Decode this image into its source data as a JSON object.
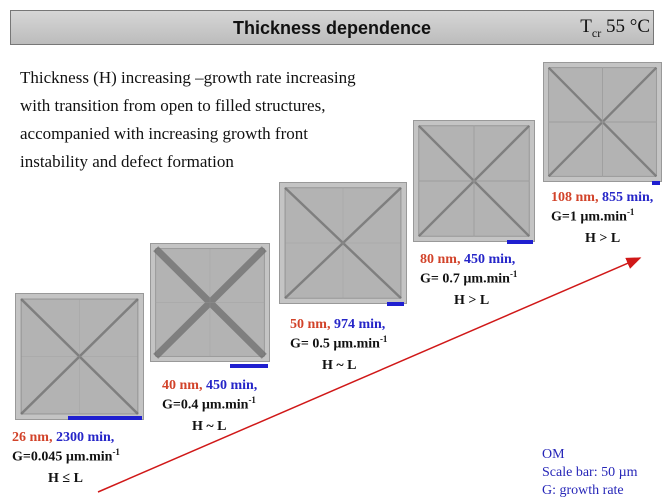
{
  "header": {
    "title": "Thickness dependence",
    "condition": {
      "symbol": "T",
      "subscript": "cr",
      "value": "55 °C"
    }
  },
  "description": [
    "Thickness (H) increasing –growth rate increasing",
    "with transition from open to filled structures,",
    "accompanied with increasing growth front",
    "instability and defect formation"
  ],
  "samples": [
    {
      "thickness": "26 nm,",
      "time": "2300 min,",
      "growth": "G=0.045 µm.min",
      "growth_exp": "-1",
      "relation": "H ≤ L"
    },
    {
      "thickness": "40 nm,",
      "time": "450 min,",
      "growth": "G=0.4 µm.min",
      "growth_exp": "-1",
      "relation": "H ~ L"
    },
    {
      "thickness": "50 nm,",
      "time": "974 min,",
      "growth": "G= 0.5 µm.min",
      "growth_exp": "-1",
      "relation": "H ~ L"
    },
    {
      "thickness": "80 nm,",
      "time": "450 min,",
      "growth": "G= 0.7 µm.min",
      "growth_exp": "-1",
      "relation": "H > L"
    },
    {
      "thickness": "108 nm,",
      "time": "855 min,",
      "growth": "G=1 µm.min",
      "growth_exp": "-1",
      "relation": "H > L"
    }
  ],
  "legend": [
    "OM",
    "Scale bar: 50 µm",
    "G: growth rate"
  ]
}
